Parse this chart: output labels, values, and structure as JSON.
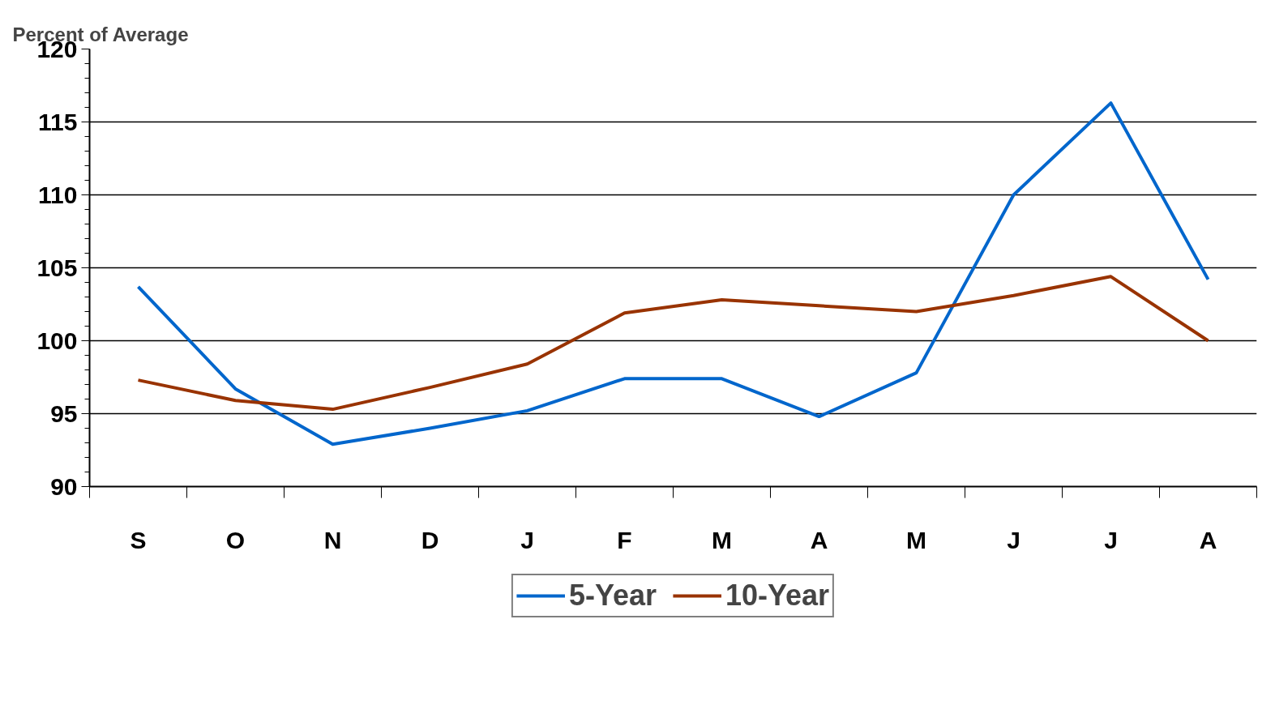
{
  "chart_data": {
    "type": "line",
    "ylabel": "Percent of Average",
    "categories": [
      "S",
      "O",
      "N",
      "D",
      "J",
      "F",
      "M",
      "A",
      "M",
      "J",
      "J",
      "A"
    ],
    "series": [
      {
        "name": "5-Year",
        "color": "#0066cc",
        "values": [
          103.7,
          96.7,
          92.9,
          94.0,
          95.2,
          97.4,
          97.4,
          94.8,
          97.8,
          110.0,
          116.3,
          104.2
        ]
      },
      {
        "name": "10-Year",
        "color": "#993300",
        "values": [
          97.3,
          95.9,
          95.3,
          96.8,
          98.4,
          101.9,
          102.8,
          102.4,
          102.0,
          103.1,
          104.4,
          100.0
        ]
      }
    ],
    "ylim": [
      90,
      120
    ],
    "yticks": [
      90,
      95,
      100,
      105,
      110,
      115,
      120
    ],
    "grid": "y",
    "legend": "bottom",
    "marker": "none",
    "line_style": "solid"
  }
}
